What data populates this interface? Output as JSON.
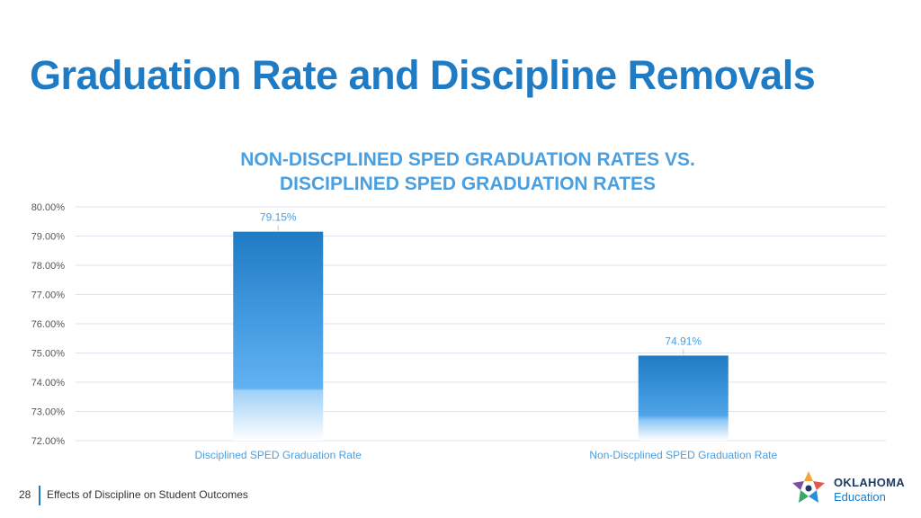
{
  "slide": {
    "title": "Graduation Rate and Discipline Removals"
  },
  "footer": {
    "page_number": "28",
    "text": "Effects of Discipline on Student Outcomes"
  },
  "logo": {
    "line1": "OKLAHOMA",
    "line2": "Education"
  },
  "colors": {
    "title": "#1f7bc4",
    "chart_title": "#4a9fe0",
    "bar_top": "#1f7bc4",
    "bar_mid": "#5aaef0",
    "tick_label": "#555555",
    "category_label": "#4a9fe0",
    "data_label": "#4a9fe0",
    "grid": "#dde6f0"
  },
  "chart_data": {
    "type": "bar",
    "title": "NON-DISCPLINED SPED GRADUATION RATES VS. DISCIPLINED SPED GRADUATION RATES",
    "categories": [
      "Disciplined SPED Graduation Rate",
      "Non-Discplined SPED Graduation Rate"
    ],
    "values": [
      79.15,
      74.91
    ],
    "data_labels": [
      "79.15%",
      "74.91%"
    ],
    "ylim": [
      72,
      80
    ],
    "yticks": [
      80,
      79,
      78,
      77,
      76,
      75,
      74,
      73,
      72
    ],
    "ytick_labels": [
      "80.00%",
      "79.00%",
      "78.00%",
      "77.00%",
      "76.00%",
      "75.00%",
      "74.00%",
      "73.00%",
      "72.00%"
    ],
    "grid": true,
    "legend": "none"
  }
}
